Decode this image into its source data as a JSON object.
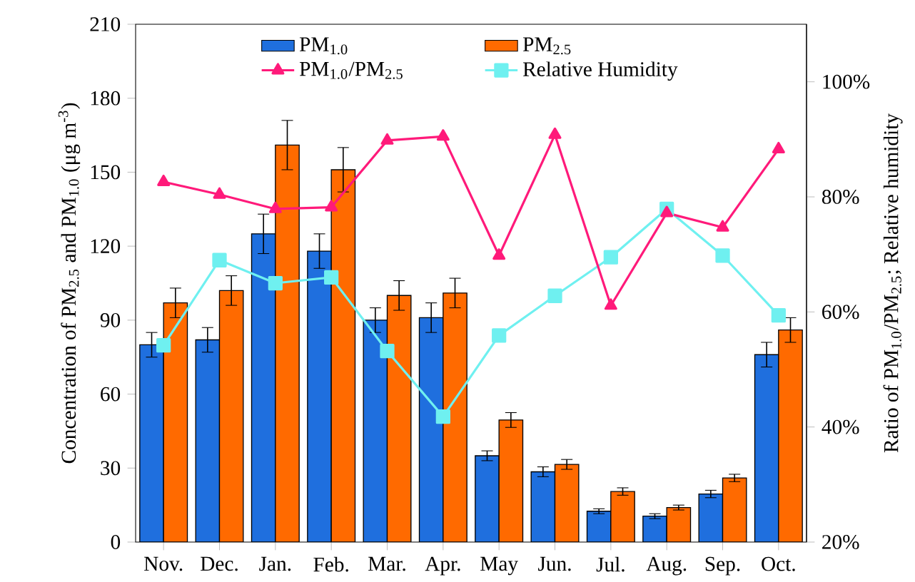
{
  "chart_data": {
    "type": "bar",
    "categories": [
      "Nov.",
      "Dec.",
      "Jan.",
      "Feb.",
      "Mar.",
      "Apr.",
      "May",
      "Jun.",
      "Jul.",
      "Aug.",
      "Sep.",
      "Oct."
    ],
    "ylabel": "Concentration of PM$_{2.5}$ and PM$_{1.0}$ (μg m$^{-3}$)",
    "y2label": "Ratio of PM$_{1.0}$/PM$_{2.5}$; Relative humidity",
    "ylim": [
      0,
      210
    ],
    "yticks": [
      0,
      30,
      60,
      90,
      120,
      150,
      180,
      210
    ],
    "y2lim": [
      20,
      110
    ],
    "y2ticks": [
      {
        "value": 20,
        "label": "20%"
      },
      {
        "value": 40,
        "label": "40%"
      },
      {
        "value": 60,
        "label": "60%"
      },
      {
        "value": 80,
        "label": "80%"
      },
      {
        "value": 100,
        "label": "100%"
      }
    ],
    "legend": "top",
    "grid": false,
    "series": [
      {
        "name": "PM$_{1.0}$",
        "type": "bar",
        "color": "#1f6fde",
        "values": [
          80,
          82,
          125,
          118,
          90,
          91,
          35,
          28.5,
          12.5,
          10.5,
          19.5,
          76
        ],
        "errors": [
          5,
          5,
          8,
          7,
          5,
          6,
          2,
          2,
          1,
          1,
          1.5,
          5
        ]
      },
      {
        "name": "PM$_{2.5}$",
        "type": "bar",
        "color": "#ff6a00",
        "values": [
          97,
          102,
          161,
          151,
          100,
          101,
          49.5,
          31.5,
          20.5,
          14,
          26,
          86
        ],
        "errors": [
          6,
          6,
          10,
          9,
          6,
          6,
          3,
          2,
          1.5,
          1,
          1.5,
          5
        ]
      },
      {
        "name": "PM$_{1.0}$/PM$_{2.5}$",
        "type": "line",
        "axis": "y2",
        "marker": "triangle",
        "color": "#ff1a7a",
        "values": [
          82.6,
          80.4,
          77.9,
          78.2,
          89.8,
          90.5,
          69.8,
          90.8,
          61.1,
          77.2,
          74.7,
          88.3
        ]
      },
      {
        "name": "Relative Humidity",
        "type": "line",
        "axis": "y2",
        "marker": "square",
        "color": "#6ff0f0",
        "values": [
          54.2,
          69,
          65,
          66,
          53.2,
          41.8,
          55.9,
          62.8,
          69.5,
          77.9,
          69.8,
          59.4
        ]
      }
    ]
  }
}
